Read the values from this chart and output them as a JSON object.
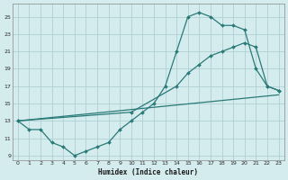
{
  "xlabel": "Humidex (Indice chaleur)",
  "bg_color": "#d4ecee",
  "grid_color": "#b0d0d4",
  "line_color": "#2a7a78",
  "xlim": [
    -0.5,
    23.5
  ],
  "ylim": [
    8.5,
    26.5
  ],
  "xticks": [
    0,
    1,
    2,
    3,
    4,
    5,
    6,
    7,
    8,
    9,
    10,
    11,
    12,
    13,
    14,
    15,
    16,
    17,
    18,
    19,
    20,
    21,
    22,
    23
  ],
  "yticks": [
    9,
    11,
    13,
    15,
    17,
    19,
    21,
    23,
    25
  ],
  "line1_x": [
    0,
    1,
    2,
    3,
    4,
    5,
    6,
    7,
    8,
    9,
    10,
    11,
    12,
    13,
    14,
    15,
    16,
    17,
    18,
    19,
    20,
    21,
    22,
    23
  ],
  "line1_y": [
    13,
    12,
    12,
    10.5,
    10,
    9,
    9.5,
    10,
    10.5,
    12,
    13,
    14,
    15,
    17,
    21,
    25,
    25.5,
    25,
    24,
    24,
    23.5,
    19,
    17,
    16.5
  ],
  "line2_x": [
    0,
    10,
    14,
    15,
    16,
    17,
    18,
    19,
    20,
    21,
    22,
    23
  ],
  "line2_y": [
    13,
    14,
    17,
    18.5,
    19.5,
    20.5,
    21,
    21.5,
    22,
    21.5,
    17,
    16.5
  ],
  "line3_x": [
    0,
    23
  ],
  "line3_y": [
    13,
    16
  ]
}
